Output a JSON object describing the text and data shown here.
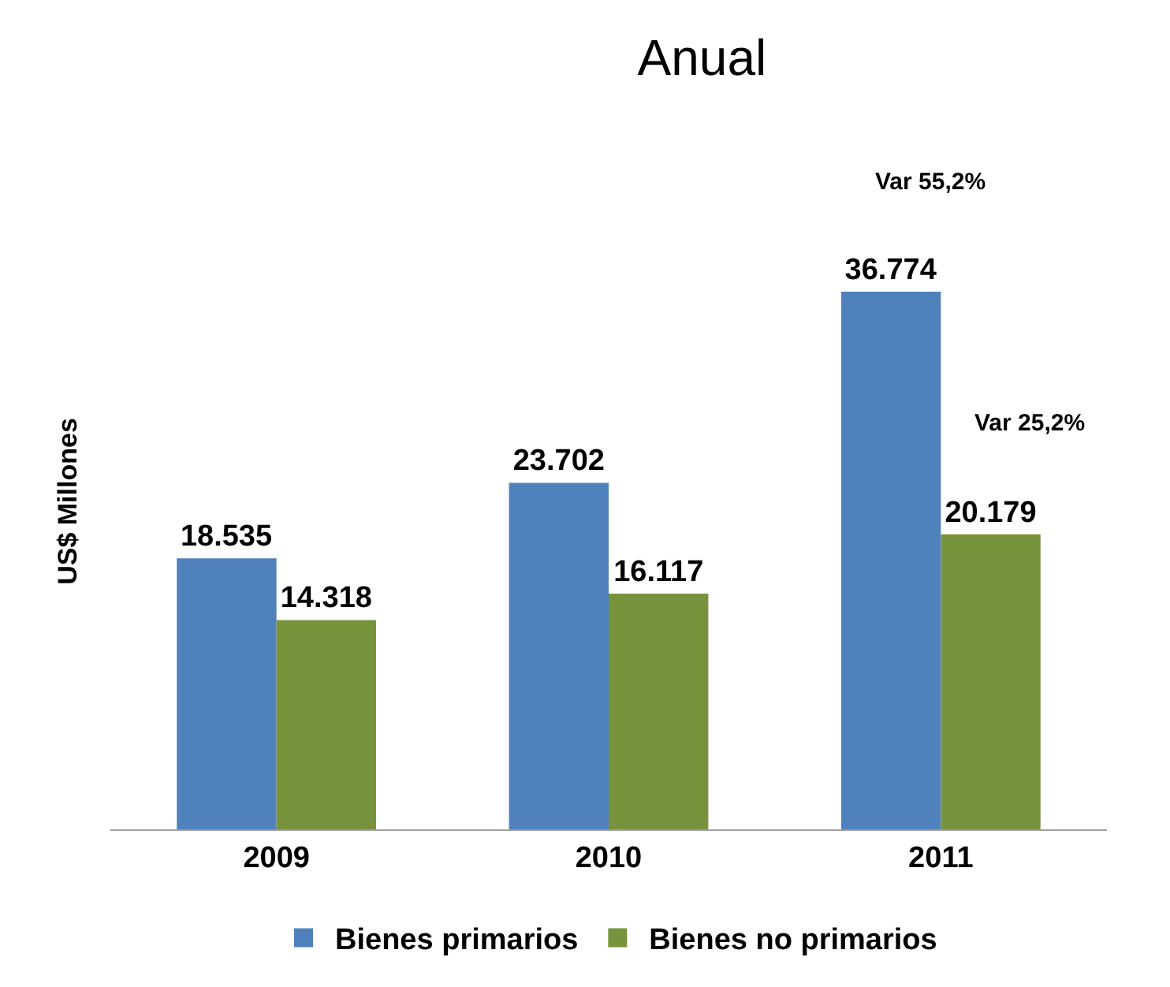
{
  "chart_data": {
    "type": "bar",
    "title": "Anual",
    "ylabel": "US$ Millones",
    "categories": [
      "2009",
      "2010",
      "2011"
    ],
    "series": [
      {
        "name": "Bienes primarios",
        "color": "#4f81bd",
        "values": [
          18535,
          23702,
          36774
        ],
        "value_labels": [
          "18.535",
          "23.702",
          "36.774"
        ]
      },
      {
        "name": "Bienes no primarios",
        "color": "#77933c",
        "values": [
          14318,
          16117,
          20179
        ],
        "value_labels": [
          "14.318",
          "16.117",
          "20.179"
        ]
      }
    ],
    "annotations": [
      "Var 55,2%",
      "Var 25,2%"
    ],
    "legend": "bottom"
  }
}
